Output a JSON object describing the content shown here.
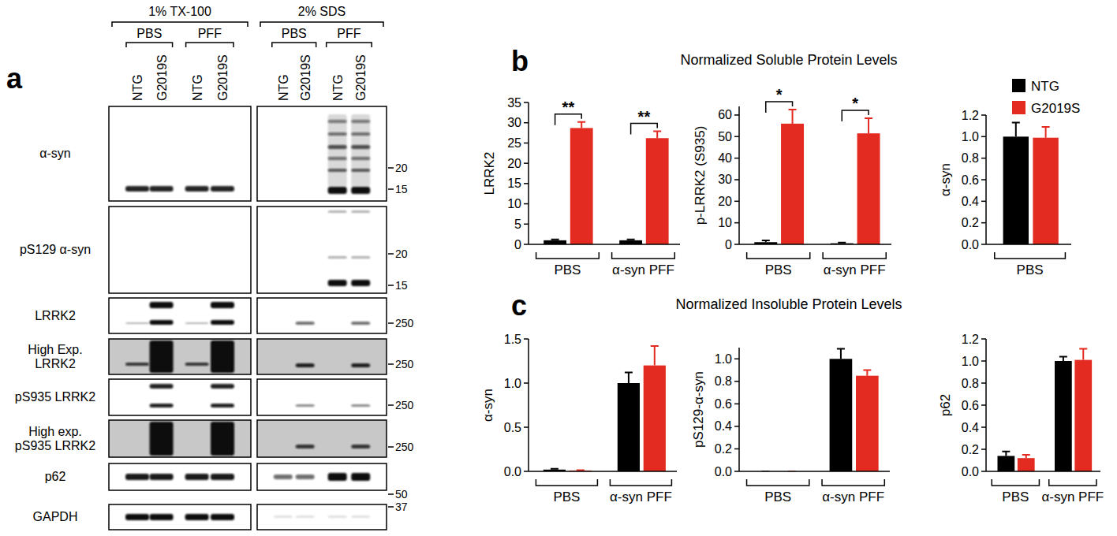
{
  "figure_labels": [
    "a",
    "b",
    "c"
  ],
  "blot": {
    "conditions": [
      {
        "label": "1% TX-100",
        "treatments": [
          {
            "label": "PBS",
            "lanes": [
              "NTG",
              "G2019S"
            ]
          },
          {
            "label": "PFF",
            "lanes": [
              "NTG",
              "G2019S"
            ]
          }
        ]
      },
      {
        "label": "2% SDS",
        "treatments": [
          {
            "label": "PBS",
            "lanes": [
              "NTG",
              "G2019S"
            ]
          },
          {
            "label": "PFF",
            "lanes": [
              "NTG",
              "G2019S"
            ]
          }
        ]
      }
    ],
    "rows": [
      {
        "label": [
          "α-syn"
        ],
        "markers": [
          20,
          15
        ]
      },
      {
        "label": [
          "pS129 α-syn"
        ],
        "markers": [
          20,
          15
        ]
      },
      {
        "label": [
          "LRRK2"
        ],
        "markers": [
          250
        ]
      },
      {
        "label": [
          "High Exp.",
          "LRRK2"
        ],
        "markers": [
          250
        ]
      },
      {
        "label": [
          "pS935 LRRK2"
        ],
        "markers": [
          250
        ]
      },
      {
        "label": [
          "High exp.",
          "pS935 LRRK2"
        ],
        "markers": [
          250
        ]
      },
      {
        "label": [
          "p62"
        ],
        "markers": [
          50
        ]
      },
      {
        "label": [
          "GAPDH"
        ],
        "markers": [
          37
        ]
      }
    ]
  },
  "section_titles": [
    "Normalized Soluble Protein Levels",
    "Normalized Insoluble Protein Levels"
  ],
  "chart_data": [
    {
      "type": "bar",
      "y_label": "LRRK2",
      "categories": [
        "PBS",
        "α-syn PFF"
      ],
      "series": [
        {
          "name": "NTG",
          "color": "#000000",
          "values": [
            1.0,
            1.0
          ],
          "errors": [
            0.2,
            0.2
          ]
        },
        {
          "name": "G2019S",
          "color": "#e32b21",
          "values": [
            28.7,
            26.2
          ],
          "errors": [
            1.5,
            1.7
          ]
        }
      ],
      "ylim": [
        0,
        35
      ],
      "yticks": [
        0,
        5,
        10,
        15,
        20,
        25,
        30,
        35
      ],
      "annotations": [
        {
          "category": 0,
          "text": "**"
        },
        {
          "category": 1,
          "text": "**"
        }
      ]
    },
    {
      "type": "bar",
      "y_label": "p-LRRK2 (S935)",
      "categories": [
        "PBS",
        "α-syn PFF"
      ],
      "series": [
        {
          "name": "NTG",
          "color": "#000000",
          "values": [
            1.0,
            0.5
          ],
          "errors": [
            0.8,
            0.3
          ]
        },
        {
          "name": "G2019S",
          "color": "#e32b21",
          "values": [
            56,
            51.5
          ],
          "errors": [
            6.5,
            7
          ]
        }
      ],
      "ylim": [
        0,
        64
      ],
      "yticks": [
        0,
        10,
        20,
        30,
        40,
        50,
        60
      ],
      "annotations": [
        {
          "category": 0,
          "text": "*"
        },
        {
          "category": 1,
          "text": "*"
        }
      ]
    },
    {
      "type": "bar",
      "y_label": "α-syn",
      "categories": [
        "PBS"
      ],
      "legend": "top-right",
      "series": [
        {
          "name": "NTG",
          "color": "#000000",
          "values": [
            1.0
          ],
          "errors": [
            0.13
          ]
        },
        {
          "name": "G2019S",
          "color": "#e32b21",
          "values": [
            0.99
          ],
          "errors": [
            0.1
          ]
        }
      ],
      "ylim": [
        0,
        1.2
      ],
      "yticks": [
        {
          "value": 0,
          "label": "0.0"
        },
        {
          "value": 0.2,
          "label": "0.2"
        },
        {
          "value": 0.4,
          "label": "0.4"
        },
        {
          "value": 0.6,
          "label": "0.6"
        },
        {
          "value": 0.8,
          "label": "0.8"
        },
        {
          "value": 1,
          "label": "1.0"
        },
        {
          "value": 1.2,
          "label": "1.2"
        }
      ]
    },
    {
      "type": "bar",
      "y_label": "α-syn",
      "categories": [
        "PBS",
        "α-syn PFF"
      ],
      "series": [
        {
          "name": "NTG",
          "color": "#000000",
          "values": [
            0.02,
            1.0
          ],
          "errors": [
            0.01,
            0.12
          ]
        },
        {
          "name": "G2019S",
          "color": "#e32b21",
          "values": [
            0.01,
            1.2
          ],
          "errors": [
            0.004,
            0.22
          ]
        }
      ],
      "ylim": [
        0,
        1.5
      ],
      "yticks": [
        {
          "value": 0,
          "label": "0.0"
        },
        {
          "value": 0.5,
          "label": "0.5"
        },
        {
          "value": 1,
          "label": "1.0"
        },
        {
          "value": 1.5,
          "label": "1.5"
        }
      ]
    },
    {
      "type": "bar",
      "y_label": "pS129-α-syn",
      "categories": [
        "PBS",
        "α-syn PFF"
      ],
      "series": [
        {
          "name": "NTG",
          "color": "#000000",
          "values": [
            0,
            1.0
          ],
          "errors": [
            0,
            0.09
          ]
        },
        {
          "name": "G2019S",
          "color": "#e32b21",
          "values": [
            0,
            0.85
          ],
          "errors": [
            0,
            0.05
          ]
        }
      ],
      "ylim": [
        0,
        1.1
      ],
      "yticks": [
        {
          "value": 0,
          "label": "0.0"
        },
        {
          "value": 0.2,
          "label": "0.2"
        },
        {
          "value": 0.4,
          "label": "0.4"
        },
        {
          "value": 0.6,
          "label": "0.6"
        },
        {
          "value": 0.8,
          "label": "0.8"
        },
        {
          "value": 1,
          "label": "1.0"
        }
      ]
    },
    {
      "type": "bar",
      "y_label": "p62",
      "categories": [
        "PBS",
        "α-syn PFF"
      ],
      "series": [
        {
          "name": "NTG",
          "color": "#000000",
          "values": [
            0.14,
            1.0
          ],
          "errors": [
            0.04,
            0.04
          ]
        },
        {
          "name": "G2019S",
          "color": "#e32b21",
          "values": [
            0.12,
            1.01
          ],
          "errors": [
            0.03,
            0.1
          ]
        }
      ],
      "ylim": [
        0,
        1.2
      ],
      "yticks": [
        {
          "value": 0,
          "label": "0.0"
        },
        {
          "value": 0.2,
          "label": "0.2"
        },
        {
          "value": 0.4,
          "label": "0.4"
        },
        {
          "value": 0.6,
          "label": "0.6"
        },
        {
          "value": 0.8,
          "label": "0.8"
        },
        {
          "value": 1,
          "label": "1.0"
        },
        {
          "value": 1.2,
          "label": "1.2"
        }
      ]
    }
  ]
}
